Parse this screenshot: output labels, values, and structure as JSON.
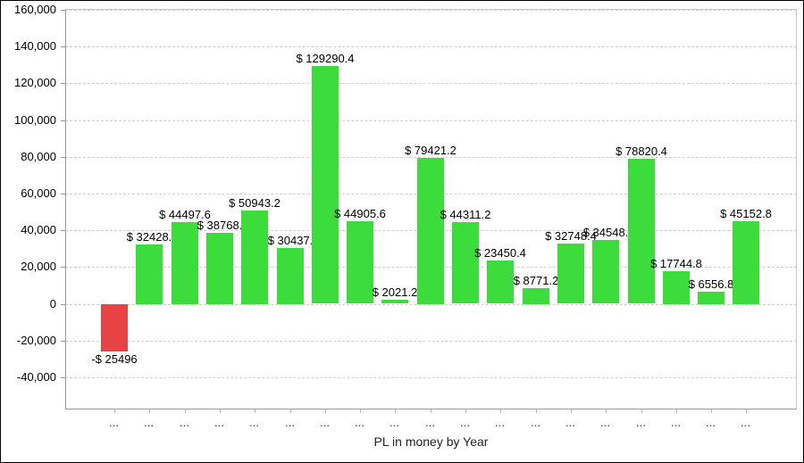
{
  "window": {
    "background": "#ffffff",
    "border_color": "#000000"
  },
  "chart_data": {
    "type": "bar",
    "title": "",
    "xlabel": "PL in money by Year",
    "ylabel": "",
    "legend": "none",
    "grid": "horizontal-dashed",
    "ylim": [
      -57500,
      160500
    ],
    "y_ticks": [
      160000,
      140000,
      120000,
      100000,
      80000,
      60000,
      40000,
      20000,
      0,
      -20000,
      -40000
    ],
    "y_tick_labels": [
      "160,000",
      "140,000",
      "120,000",
      "100,000",
      "80,000",
      "60,000",
      "40,000",
      "20,000",
      "0",
      "-20,000",
      "-40,000"
    ],
    "categories": [
      "...",
      "...",
      "...",
      "...",
      "...",
      "...",
      "...",
      "...",
      "...",
      "...",
      "...",
      "...",
      "...",
      "...",
      "...",
      "...",
      "...",
      "...",
      "..."
    ],
    "values": [
      -25496,
      32428,
      44497.6,
      38768,
      50943.2,
      30437,
      129290.4,
      44905.6,
      2021.2,
      79421.2,
      44311.2,
      23450.4,
      8771.2,
      32748.4,
      34548,
      78820.4,
      17744.8,
      6556.8,
      45152.8
    ],
    "bar_labels": [
      "-$ 25496",
      "$ 32428.",
      "$ 44497.6",
      "$ 38768.",
      "$ 50943.2",
      "$ 30437.",
      "$ 129290.4",
      "$ 44905.6",
      "$ 2021.2",
      "$ 79421.2",
      "$ 44311.2",
      "$ 23450.4",
      "$ 8771.2",
      "$ 32748.4",
      "$ 34548.",
      "$ 78820.4",
      "$ 17744.8",
      "$ 6556.8",
      "$ 45152.8"
    ],
    "colors": {
      "positive_bar": "#3CDC3C",
      "negative_bar": "#E84343",
      "grid_line": "#d0d0d0",
      "axis_line": "#9a9a9a",
      "label_text": "#000000"
    }
  }
}
